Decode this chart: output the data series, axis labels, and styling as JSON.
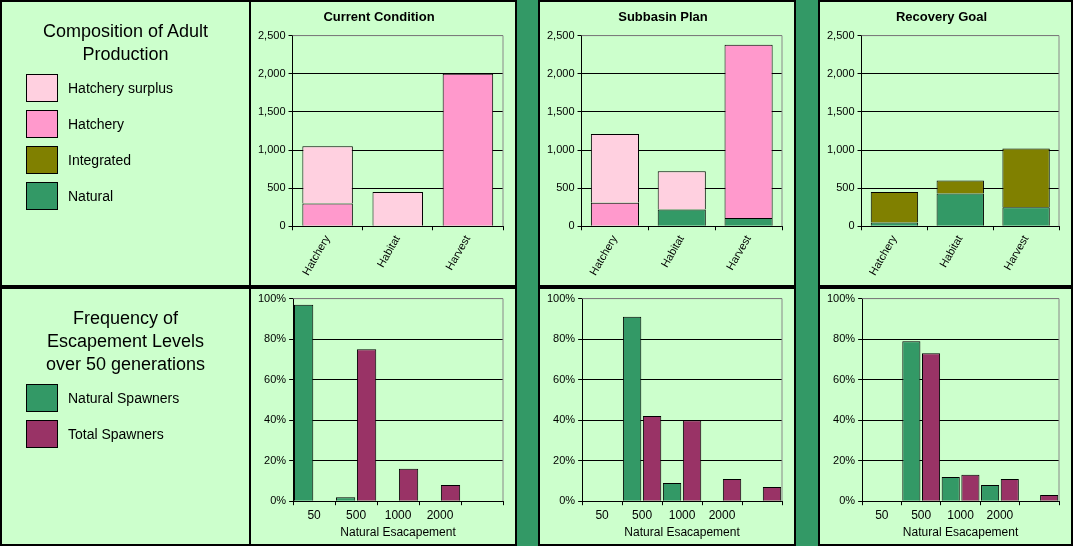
{
  "chart_data": [
    {
      "type": "bar",
      "title": "Current Condition",
      "stacked": true,
      "legend": "left",
      "legend_title": "Composition of Adult Production",
      "grid": "y",
      "categories": [
        "Hatchery",
        "Habitat",
        "Harvest"
      ],
      "ylim": [
        0,
        2500
      ],
      "yticks": [
        {
          "value": 0,
          "label": "0"
        },
        {
          "value": 500,
          "label": "500"
        },
        {
          "value": 1000,
          "label": "1,000"
        },
        {
          "value": 1500,
          "label": "1,500"
        },
        {
          "value": 2000,
          "label": "2,000"
        },
        {
          "value": 2500,
          "label": "2,500"
        }
      ],
      "series": [
        {
          "name": "Natural",
          "color": "#339966",
          "values": [
            0,
            0,
            0
          ]
        },
        {
          "name": "Integrated",
          "color": "#808000",
          "values": [
            0,
            0,
            0
          ]
        },
        {
          "name": "Hatchery",
          "color": "#ff99cc",
          "values": [
            300,
            0,
            2000
          ]
        },
        {
          "name": "Hatchery surplus",
          "color": "#ffd0e0",
          "values": [
            750,
            450,
            0
          ]
        }
      ]
    },
    {
      "type": "bar",
      "title": "Subbasin Plan",
      "stacked": true,
      "grid": "y",
      "categories": [
        "Hatchery",
        "Habitat",
        "Harvest"
      ],
      "ylim": [
        0,
        2500
      ],
      "yticks": [
        {
          "value": 0,
          "label": "0"
        },
        {
          "value": 500,
          "label": "500"
        },
        {
          "value": 1000,
          "label": "1,000"
        },
        {
          "value": 1500,
          "label": "1,500"
        },
        {
          "value": 2000,
          "label": "2,000"
        },
        {
          "value": 2500,
          "label": "2,500"
        }
      ],
      "series": [
        {
          "color": "#339966",
          "values": [
            null,
            220,
            110
          ]
        },
        {
          "color": "#808000",
          "values": [
            0,
            0,
            0
          ]
        },
        {
          "color": "#ff99cc",
          "values": [
            310,
            null,
            2270
          ]
        },
        {
          "color": "#ffd0e0",
          "values": [
            900,
            500,
            0
          ]
        }
      ]
    },
    {
      "type": "bar",
      "title": "Recovery Goal",
      "stacked": true,
      "grid": "y",
      "categories": [
        "Hatchery",
        "Habitat",
        "Harvest"
      ],
      "ylim": [
        0,
        2500
      ],
      "yticks": [
        {
          "value": 0,
          "label": "0"
        },
        {
          "value": 500,
          "label": "500"
        },
        {
          "value": 1000,
          "label": "1,000"
        },
        {
          "value": 1500,
          "label": "1,500"
        },
        {
          "value": 2000,
          "label": "2,000"
        },
        {
          "value": 2500,
          "label": "2,500"
        }
      ],
      "series": [
        {
          "color": "#339966",
          "values": [
            50,
            430,
            250
          ]
        },
        {
          "color": "#808000",
          "values": [
            400,
            170,
            770
          ]
        },
        {
          "color": "#ff99cc",
          "values": [
            0,
            0,
            0
          ]
        },
        {
          "color": "#ffd0e0",
          "values": [
            0,
            0,
            0
          ]
        }
      ]
    },
    {
      "type": "bar",
      "legend": "left",
      "legend_title": "Frequency of Escapement Levels over 50 generations",
      "xlabel": "Natural Esacapement",
      "grid": "y",
      "categories": [
        "50",
        "500",
        "1000",
        "2000",
        null
      ],
      "ylim": [
        0,
        100
      ],
      "yticks": [
        {
          "value": 0,
          "label": "0%"
        },
        {
          "value": 20,
          "label": "20%"
        },
        {
          "value": 40,
          "label": "40%"
        },
        {
          "value": 60,
          "label": "60%"
        },
        {
          "value": 80,
          "label": "80%"
        },
        {
          "value": 100,
          "label": "100%"
        }
      ],
      "series": [
        {
          "name": "Natural Spawners",
          "color": "#339966",
          "values": [
            97,
            2,
            0,
            0,
            0
          ]
        },
        {
          "name": "Total Spawners",
          "color": "#993366",
          "values": [
            0,
            75,
            16,
            8,
            0
          ]
        }
      ]
    },
    {
      "type": "bar",
      "xlabel": "Natural Esacapement",
      "grid": "y",
      "categories": [
        "50",
        "500",
        "1000",
        "2000",
        null
      ],
      "ylim": [
        0,
        100
      ],
      "yticks": [
        {
          "value": 0,
          "label": "0%"
        },
        {
          "value": 20,
          "label": "20%"
        },
        {
          "value": 40,
          "label": "40%"
        },
        {
          "value": 60,
          "label": "60%"
        },
        {
          "value": 80,
          "label": "80%"
        },
        {
          "value": 100,
          "label": "100%"
        }
      ],
      "series": [
        {
          "color": "#339966",
          "values": [
            0,
            91,
            9,
            0,
            0
          ]
        },
        {
          "color": "#993366",
          "values": [
            0,
            42,
            40,
            11,
            7
          ]
        }
      ]
    },
    {
      "type": "bar",
      "xlabel": "Natural Esacapement",
      "grid": "y",
      "categories": [
        "50",
        "500",
        "1000",
        "2000",
        null
      ],
      "ylim": [
        0,
        100
      ],
      "yticks": [
        {
          "value": 0,
          "label": "0%"
        },
        {
          "value": 20,
          "label": "20%"
        },
        {
          "value": 40,
          "label": "40%"
        },
        {
          "value": 60,
          "label": "60%"
        },
        {
          "value": 80,
          "label": "80%"
        },
        {
          "value": 100,
          "label": "100%"
        }
      ],
      "series": [
        {
          "color": "#339966",
          "values": [
            0,
            79,
            12,
            8,
            0
          ]
        },
        {
          "color": "#993366",
          "values": [
            0,
            73,
            13,
            11,
            3
          ]
        }
      ]
    }
  ]
}
